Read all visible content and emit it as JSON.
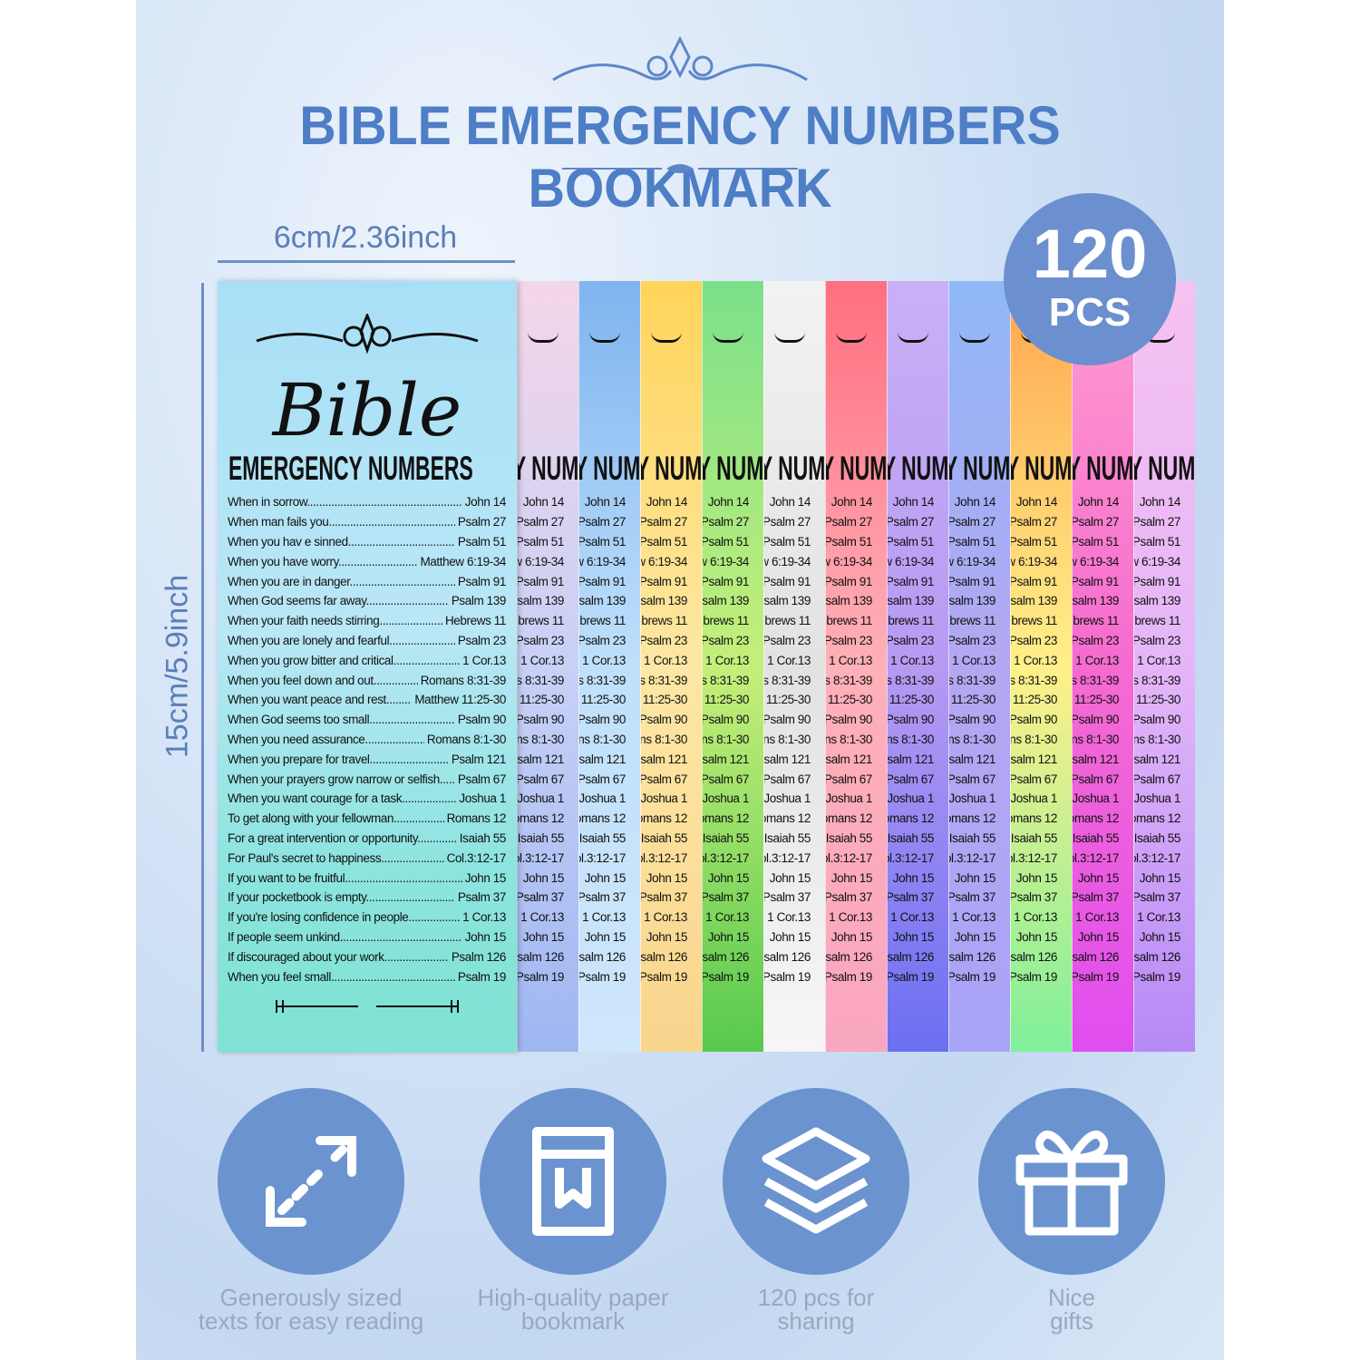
{
  "title": "BIBLE EMERGENCY NUMBERS BOOKMARK",
  "dimensions": {
    "width": "6cm/2.36inch",
    "height": "15cm/5.9inch"
  },
  "badge": {
    "count": "120",
    "unit": "PCS"
  },
  "bookmark": {
    "script_title": "Bible",
    "heading": "EMERGENCY NUMBERS",
    "items": [
      {
        "label": "When in sorrow",
        "ref": "John 14"
      },
      {
        "label": "When man fails you",
        "ref": "Psalm 27"
      },
      {
        "label": "When you hav e sinned",
        "ref": "Psalm 51"
      },
      {
        "label": "When you have worry",
        "ref": "Matthew 6:19-34"
      },
      {
        "label": "When you are in danger",
        "ref": "Psalm 91"
      },
      {
        "label": "When God seems far away",
        "ref": "Psalm 139"
      },
      {
        "label": "When your faith needs stirring",
        "ref": "Hebrews 11"
      },
      {
        "label": "When you are lonely and fearful",
        "ref": "Psalm 23"
      },
      {
        "label": "When you grow bitter and critical",
        "ref": "1 Cor.13"
      },
      {
        "label": "When you feel down and out",
        "ref": "Romans 8:31-39"
      },
      {
        "label": "When you want peace and rest",
        "ref": "Matthew 11:25-30"
      },
      {
        "label": "When God seems too small",
        "ref": "Psalm 90"
      },
      {
        "label": "When you need assurance",
        "ref": "Romans 8:1-30"
      },
      {
        "label": "When you prepare for travel",
        "ref": "Psalm 121"
      },
      {
        "label": "When your prayers grow narrow or selfish",
        "ref": "Psalm 67"
      },
      {
        "label": "When you want courage for a task",
        "ref": "Joshua 1"
      },
      {
        "label": "To get along with your fellowman",
        "ref": "Romans 12"
      },
      {
        "label": "For a great intervention or opportunity",
        "ref": "Isaiah 55"
      },
      {
        "label": "For Paul's secret to happiness",
        "ref": "Col.3:12-17"
      },
      {
        "label": "If you want to be fruitful",
        "ref": "John 15"
      },
      {
        "label": "If your pocketbook is empty",
        "ref": "Psalm 37"
      },
      {
        "label": "If you're losing confidence in people",
        "ref": "1 Cor.13"
      },
      {
        "label": "If people seem unkind",
        "ref": "John 15"
      },
      {
        "label": "If discouraged about your work",
        "ref": "Psalm 126"
      },
      {
        "label": "When you feel small",
        "ref": "Psalm 19"
      }
    ]
  },
  "strip_colors": [
    [
      "#f4d6e8",
      "#c8d0f6",
      "#9fb7f2"
    ],
    [
      "#7fb4ef",
      "#bfe0fb",
      "#cfe6fb"
    ],
    [
      "#ffd45a",
      "#fde7a4",
      "#f9d58e"
    ],
    [
      "#7be08a",
      "#c5ef7a",
      "#58c94e"
    ],
    [
      "#f2f2f2",
      "#e2e2e2",
      "#f6f6f6"
    ],
    [
      "#ff6f80",
      "#ffb0b8",
      "#f9a6c0"
    ],
    [
      "#c9b0f6",
      "#b69af2",
      "#6b6ff2"
    ],
    [
      "#8fb8f7",
      "#b4a7f2",
      "#a9a4f7"
    ],
    [
      "#ffa54e",
      "#fff08a",
      "#7ff09a"
    ],
    [
      "#ff9ccd",
      "#f56bd0",
      "#e04ef0"
    ],
    [
      "#f7c2f0",
      "#e4b6f8",
      "#b58af6"
    ]
  ],
  "features": [
    {
      "icon": "expand-arrows-icon",
      "line1": "Generously sized",
      "line2": "texts for easy reading"
    },
    {
      "icon": "bookmark-book-icon",
      "line1": "High-quality paper",
      "line2": "bookmark"
    },
    {
      "icon": "layers-stack-icon",
      "line1": "120 pcs for",
      "line2": "sharing"
    },
    {
      "icon": "gift-icon",
      "line1": "Nice",
      "line2": "gifts"
    }
  ],
  "colors": {
    "accent": "#4d7ec6",
    "circle": "#6b93cf"
  }
}
